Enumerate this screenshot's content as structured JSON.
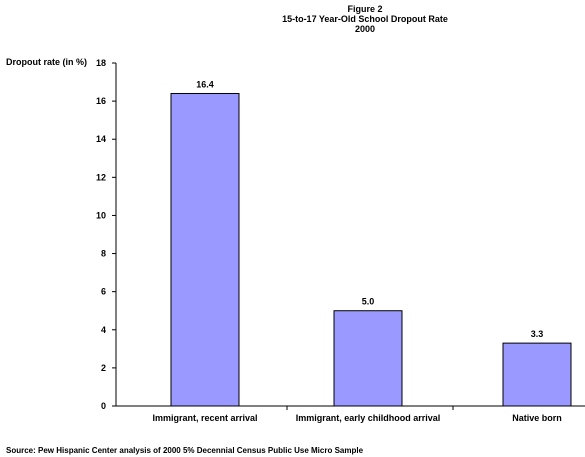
{
  "title_lines": [
    "Figure 2",
    "15-to-17 Year-Old School Dropout Rate",
    "2000"
  ],
  "source": "Source: Pew Hispanic Center analysis of 2000 5% Decennial Census Public Use Micro Sample",
  "chart_data": {
    "type": "bar",
    "title": "15-to-17 Year-Old School Dropout Rate",
    "ylabel": "Dropout rate (in %)",
    "xlabel": "",
    "categories": [
      "Immigrant, recent arrival",
      "Immigrant, early childhood arrival",
      "Native born"
    ],
    "values": [
      16.4,
      5.0,
      3.3
    ],
    "value_labels": [
      "16.4",
      "5.0",
      "3.3"
    ],
    "ylim": [
      0,
      18
    ],
    "yticks": [
      0,
      2,
      4,
      6,
      8,
      10,
      12,
      14,
      16,
      18
    ],
    "grid": false,
    "legend": "none",
    "bar_color": "#9999ff"
  }
}
